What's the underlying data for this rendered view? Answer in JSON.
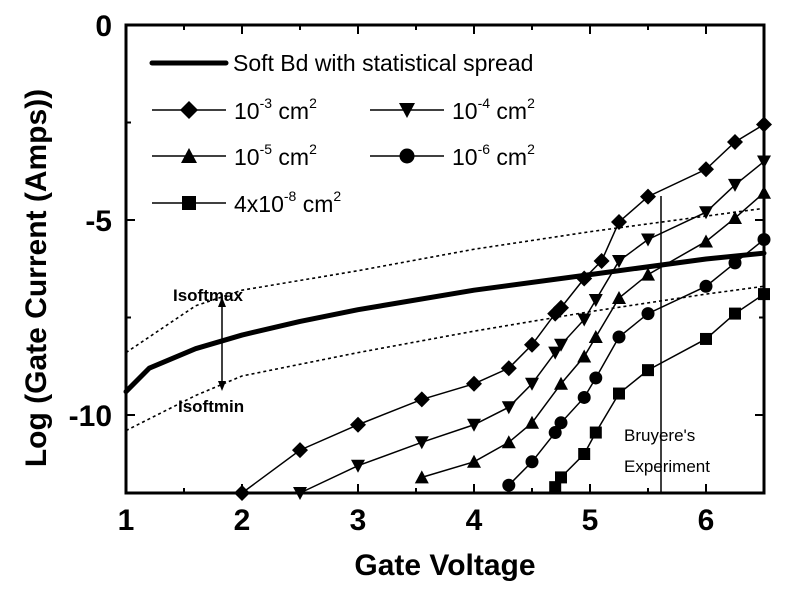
{
  "chart_data": {
    "type": "line",
    "title": "",
    "xlabel": "Gate Voltage",
    "ylabel": "Log (Gate Current (Amps))",
    "xlim": [
      1,
      6.5
    ],
    "ylim": [
      -12,
      0
    ],
    "x_ticks": [
      "1",
      "2",
      "3",
      "4",
      "5",
      "6"
    ],
    "y_ticks": [
      "0",
      "-5",
      "-10"
    ],
    "grid": false,
    "legend_position": "upper-left-inside",
    "series": [
      {
        "name": "Soft Bd with statistical spread",
        "style": "thick-solid",
        "x": [
          1.0,
          1.2,
          1.6,
          2.0,
          2.5,
          3.0,
          4.0,
          5.0,
          6.0,
          6.5
        ],
        "y": [
          -9.4,
          -8.8,
          -8.3,
          -7.95,
          -7.6,
          -7.3,
          -6.8,
          -6.4,
          -6.0,
          -5.85
        ]
      },
      {
        "name": "Isoftmax",
        "style": "dashed",
        "x": [
          1.0,
          1.6,
          2.0,
          3.0,
          4.0,
          5.0,
          6.0,
          6.5
        ],
        "y": [
          -8.4,
          -7.2,
          -6.8,
          -6.3,
          -5.75,
          -5.3,
          -4.9,
          -4.7
        ]
      },
      {
        "name": "Isoftmin",
        "style": "dashed",
        "x": [
          1.0,
          1.6,
          2.0,
          3.0,
          4.0,
          5.0,
          6.0,
          6.5
        ],
        "y": [
          -10.4,
          -9.5,
          -9.0,
          -8.4,
          -7.85,
          -7.35,
          -6.9,
          -6.7
        ]
      },
      {
        "name": "10^-3 cm^2",
        "marker": "diamond",
        "x": [
          2.0,
          2.5,
          3.0,
          3.55,
          4.0,
          4.3,
          4.5,
          4.7,
          4.75,
          4.95,
          5.1,
          5.25,
          5.5,
          6.0,
          6.25,
          6.5
        ],
        "y": [
          -12.0,
          -10.9,
          -10.25,
          -9.6,
          -9.2,
          -8.8,
          -8.2,
          -7.4,
          -7.25,
          -6.5,
          -6.05,
          -5.05,
          -4.4,
          -3.7,
          -3.0,
          -2.55
        ]
      },
      {
        "name": "10^-4 cm^2",
        "marker": "triangle-down",
        "x": [
          2.5,
          3.0,
          3.55,
          4.0,
          4.3,
          4.5,
          4.7,
          4.75,
          4.95,
          5.05,
          5.25,
          5.5,
          6.0,
          6.25,
          6.5
        ],
        "y": [
          -12.0,
          -11.3,
          -10.7,
          -10.25,
          -9.8,
          -9.2,
          -8.4,
          -8.2,
          -7.55,
          -7.05,
          -6.05,
          -5.5,
          -4.8,
          -4.1,
          -3.5
        ]
      },
      {
        "name": "10^-5 cm^2",
        "marker": "triangle-up",
        "x": [
          3.55,
          4.0,
          4.3,
          4.5,
          4.75,
          4.95,
          5.05,
          5.25,
          5.5,
          6.0,
          6.25,
          6.5
        ],
        "y": [
          -11.6,
          -11.2,
          -10.7,
          -10.2,
          -9.2,
          -8.5,
          -8.0,
          -7.0,
          -6.4,
          -5.55,
          -4.95,
          -4.3
        ]
      },
      {
        "name": "10^-6 cm^2",
        "marker": "circle",
        "x": [
          4.3,
          4.5,
          4.7,
          4.75,
          4.95,
          5.05,
          5.25,
          5.5,
          6.0,
          6.25,
          6.5
        ],
        "y": [
          -11.8,
          -11.2,
          -10.45,
          -10.2,
          -9.55,
          -9.05,
          -8.0,
          -7.4,
          -6.7,
          -6.1,
          -5.5
        ]
      },
      {
        "name": "4x10^-8 cm^2",
        "marker": "square",
        "x": [
          4.7,
          4.75,
          4.95,
          5.05,
          5.25,
          5.5,
          6.0,
          6.25,
          6.5
        ],
        "y": [
          -11.85,
          -11.6,
          -11.0,
          -10.45,
          -9.45,
          -8.85,
          -8.05,
          -7.4,
          -6.9
        ]
      }
    ],
    "annotations": [
      {
        "text": "Isoftmax",
        "x": 1.5,
        "y": -7.0
      },
      {
        "text": "Isoftmin",
        "x": 1.5,
        "y": -9.8
      },
      {
        "text": "Bruyere's",
        "x": 5.85,
        "y": -10.45
      },
      {
        "text": "Experiment",
        "x": 5.85,
        "y": -11.3
      }
    ],
    "vertical_marker": {
      "x": 5.6,
      "label": "Bruyere's Experiment"
    }
  },
  "legend": {
    "entries": [
      {
        "base": "Soft Bd with statistical spread",
        "exp": "",
        "unit": ""
      },
      {
        "base": "10",
        "exp": "-3",
        "unit": " cm",
        "unit_exp": "2"
      },
      {
        "base": "10",
        "exp": "-4",
        "unit": " cm",
        "unit_exp": "2"
      },
      {
        "base": "10",
        "exp": "-5",
        "unit": " cm",
        "unit_exp": "2"
      },
      {
        "base": "10",
        "exp": "-6",
        "unit": " cm",
        "unit_exp": "2"
      },
      {
        "base": "4x10",
        "exp": "-8",
        "unit": " cm",
        "unit_exp": "2"
      }
    ]
  },
  "labels": {
    "isoftmax": "Isoftmax",
    "isoftmin": "Isoftmin",
    "bruyere1": "Bruyere's",
    "bruyere2": "Experiment",
    "xlabel": "Gate Voltage",
    "ylabel": "Log (Gate Current (Amps))"
  }
}
